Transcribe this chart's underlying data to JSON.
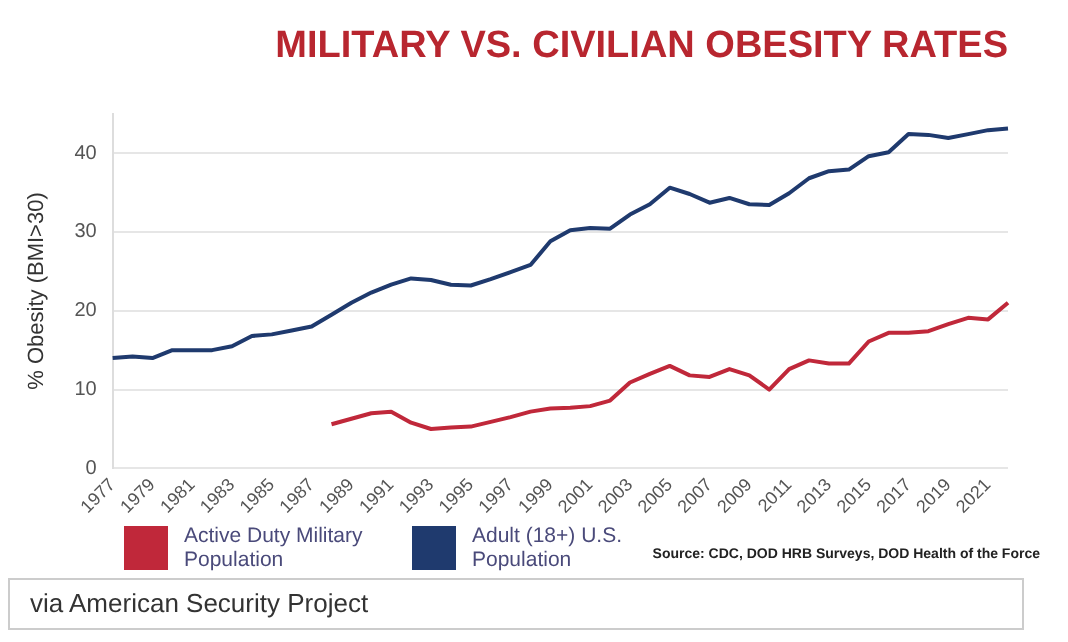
{
  "chart_data": {
    "type": "line",
    "title": "MILITARY VS. CIVILIAN OBESITY RATES",
    "ylabel": "% Obesity (BMI>30)",
    "categories": [
      "1977",
      null,
      "1979",
      null,
      "1981",
      null,
      "1983",
      null,
      "1985",
      null,
      "1987",
      null,
      "1989",
      null,
      "1991",
      null,
      "1993",
      null,
      "1995",
      null,
      "1997",
      null,
      "1999",
      null,
      "2001",
      null,
      "2003",
      null,
      "2005",
      null,
      "2007",
      null,
      "2009",
      null,
      "2011",
      null,
      "2013",
      null,
      "2015",
      null,
      "2017",
      null,
      "2019",
      null,
      "2021",
      null
    ],
    "series": [
      {
        "name": "Active Duty Military Population",
        "color": "#c0283a",
        "values": [
          null,
          null,
          null,
          null,
          null,
          null,
          null,
          null,
          null,
          null,
          null,
          5.6,
          6.3,
          7,
          7.2,
          5.8,
          5,
          5.2,
          5.3,
          5.9,
          6.5,
          7.2,
          7.6,
          7.7,
          7.9,
          8.6,
          10.9,
          12,
          13,
          11.8,
          11.6,
          12.6,
          11.8,
          10,
          12.6,
          13.7,
          13.3,
          13.3,
          16.1,
          17.2,
          17.2,
          17.4,
          18.3,
          19.1,
          18.9,
          21
        ]
      },
      {
        "name": "Adult (18+) U.S. Population",
        "color": "#1f3a6e",
        "values": [
          14,
          14.2,
          14,
          15,
          15,
          15,
          15.5,
          16.8,
          17,
          17.5,
          18,
          19.5,
          21,
          22.3,
          23.3,
          24.1,
          23.9,
          23.3,
          23.2,
          24,
          24.9,
          25.8,
          28.8,
          30.2,
          30.5,
          30.4,
          32.2,
          33.5,
          35.6,
          34.8,
          33.7,
          34.3,
          33.5,
          33.4,
          34.9,
          36.8,
          37.7,
          37.9,
          39.6,
          40.1,
          42.4,
          42.3,
          41.9,
          42.4,
          42.9,
          43.1
        ]
      }
    ],
    "ylim": [
      0,
      45
    ],
    "yticks": [
      0,
      10,
      20,
      30,
      40
    ],
    "grid": "y",
    "legend": "bottom left",
    "marker": "none",
    "line_style": "solid",
    "annotations": [
      "Source: CDC, DOD HRB Surveys, DOD Health of the Force",
      "via American Security Project"
    ]
  }
}
